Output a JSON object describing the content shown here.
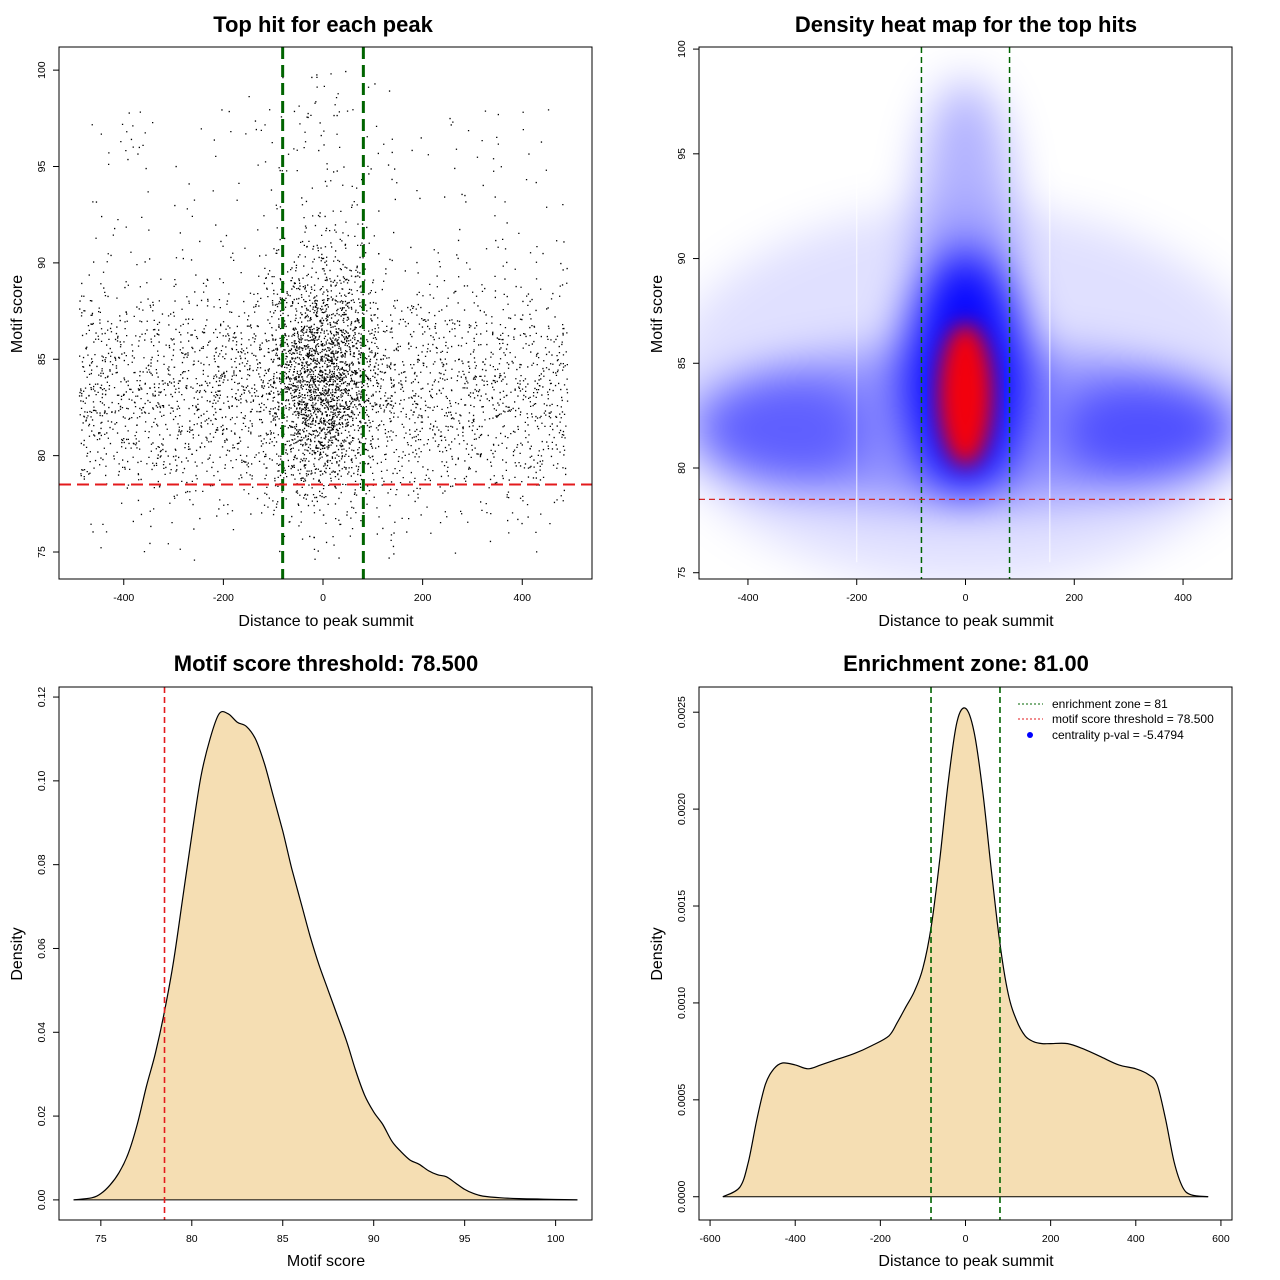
{
  "chart_data": [
    {
      "type": "scatter",
      "title": "Top hit for each peak",
      "xlabel": "Distance to peak summit",
      "ylabel": "Motif score",
      "xlim": [
        -530,
        540
      ],
      "ylim": [
        73.6,
        101.2
      ],
      "xticks": [
        -400,
        -200,
        0,
        200,
        400
      ],
      "yticks": [
        75,
        80,
        85,
        90,
        95,
        100
      ],
      "vlines": [
        -81,
        81
      ],
      "hline": 78.5,
      "vline_color": "#006400",
      "hline_color": "#e31a1c",
      "point_color": "#000000",
      "points": {
        "n_uniform": 9000,
        "n_central": 3200,
        "x_range": [
          -490,
          490
        ],
        "central_sd": 55,
        "score_mean": 83.0,
        "score_sd": 3.0,
        "score_min": 74.6,
        "score_max": 100.0
      }
    },
    {
      "type": "heatmap",
      "title": "Density heat map for the top hits",
      "xlabel": "Distance to peak summit",
      "ylabel": "Motif score",
      "xlim": [
        -490,
        490
      ],
      "ylim": [
        74.7,
        100.1
      ],
      "xticks": [
        -400,
        -200,
        0,
        200,
        400
      ],
      "yticks": [
        75,
        80,
        85,
        90,
        95,
        100
      ],
      "vlines": [
        -81,
        81
      ],
      "hline": 78.5,
      "colors": [
        "#ffffff",
        "#0000ff",
        "#ff0000"
      ],
      "peak": {
        "x": 0,
        "y": 83.5
      }
    },
    {
      "type": "area",
      "title": "Motif score threshold: 78.500",
      "xlabel": "Motif score",
      "ylabel": "Density",
      "xlim": [
        72.7,
        102.0
      ],
      "ylim": [
        -0.0048,
        0.1224
      ],
      "xticks": [
        75,
        80,
        85,
        90,
        95,
        100
      ],
      "yticks": [
        0.0,
        0.02,
        0.04,
        0.06,
        0.08,
        0.1,
        0.12
      ],
      "ytick_labels": [
        "0.00",
        "0.02",
        "0.04",
        "0.06",
        "0.08",
        "0.10",
        "0.12"
      ],
      "vline": 78.5,
      "fill": "#f5deb3",
      "x": [
        73.5,
        74.5,
        75.0,
        75.5,
        76.0,
        76.5,
        77.0,
        77.5,
        78.0,
        78.5,
        79.0,
        79.5,
        80.0,
        80.5,
        81.0,
        81.5,
        82.0,
        82.5,
        83.0,
        83.5,
        84.0,
        84.5,
        85.0,
        85.5,
        86.0,
        86.5,
        87.0,
        87.5,
        88.0,
        88.5,
        89.0,
        89.5,
        90.0,
        90.5,
        91.0,
        91.5,
        92.0,
        92.5,
        93.0,
        93.5,
        94.0,
        94.5,
        95.0,
        95.5,
        96.0,
        97.0,
        98.0,
        99.0,
        100.0,
        101.2
      ],
      "y": [
        0.0,
        0.0005,
        0.0015,
        0.0035,
        0.0065,
        0.011,
        0.018,
        0.027,
        0.035,
        0.045,
        0.057,
        0.072,
        0.087,
        0.101,
        0.11,
        0.116,
        0.116,
        0.114,
        0.113,
        0.11,
        0.104,
        0.096,
        0.088,
        0.079,
        0.071,
        0.063,
        0.056,
        0.05,
        0.044,
        0.038,
        0.031,
        0.025,
        0.021,
        0.018,
        0.014,
        0.0115,
        0.0095,
        0.0085,
        0.007,
        0.006,
        0.0055,
        0.004,
        0.0025,
        0.0015,
        0.0009,
        0.0005,
        0.0003,
        0.0002,
        0.0001,
        0.0
      ]
    },
    {
      "type": "area",
      "title": "Enrichment zone: 81.00",
      "xlabel": "Distance to peak summit",
      "ylabel": "Density",
      "xlim": [
        -626,
        626
      ],
      "ylim": [
        -0.00012,
        0.00263
      ],
      "xticks": [
        -600,
        -400,
        -200,
        0,
        200,
        400,
        600
      ],
      "yticks": [
        0.0,
        0.0005,
        0.001,
        0.0015,
        0.002,
        0.0025
      ],
      "ytick_labels": [
        "0.0000",
        "0.0005",
        "0.0010",
        "0.0015",
        "0.0020",
        "0.0025"
      ],
      "vlines": [
        -81,
        81
      ],
      "fill": "#f5deb3",
      "x": [
        -570,
        -530,
        -510,
        -490,
        -470,
        -450,
        -430,
        -400,
        -370,
        -340,
        -300,
        -260,
        -220,
        -180,
        -160,
        -140,
        -120,
        -100,
        -80,
        -60,
        -40,
        -20,
        0,
        20,
        40,
        60,
        80,
        100,
        120,
        140,
        160,
        180,
        200,
        240,
        280,
        320,
        360,
        400,
        430,
        450,
        470,
        490,
        510,
        530,
        570
      ],
      "y": [
        0.0,
        5e-05,
        0.00018,
        0.0004,
        0.00058,
        0.00066,
        0.00069,
        0.00068,
        0.00066,
        0.00068,
        0.00071,
        0.00074,
        0.00078,
        0.00083,
        0.0009,
        0.00098,
        0.00106,
        0.00118,
        0.0014,
        0.00175,
        0.00215,
        0.00245,
        0.00252,
        0.0024,
        0.0021,
        0.0017,
        0.00132,
        0.00105,
        0.00091,
        0.00083,
        0.0008,
        0.00079,
        0.00079,
        0.00079,
        0.00076,
        0.00072,
        0.00068,
        0.00066,
        0.00063,
        0.00058,
        0.0004,
        0.00018,
        5e-05,
        1e-05,
        0.0
      ],
      "legend": {
        "position": "top-right",
        "items": [
          {
            "label": "enrichment zone = 81",
            "color": "#006400",
            "marker": "dotted-line"
          },
          {
            "label": "motif score threshold = 78.500",
            "color": "#e31a1c",
            "marker": "dotted-line"
          },
          {
            "label": "centrality p-val = -5.4794",
            "color": "#0000ff",
            "marker": "dot"
          }
        ]
      }
    }
  ]
}
